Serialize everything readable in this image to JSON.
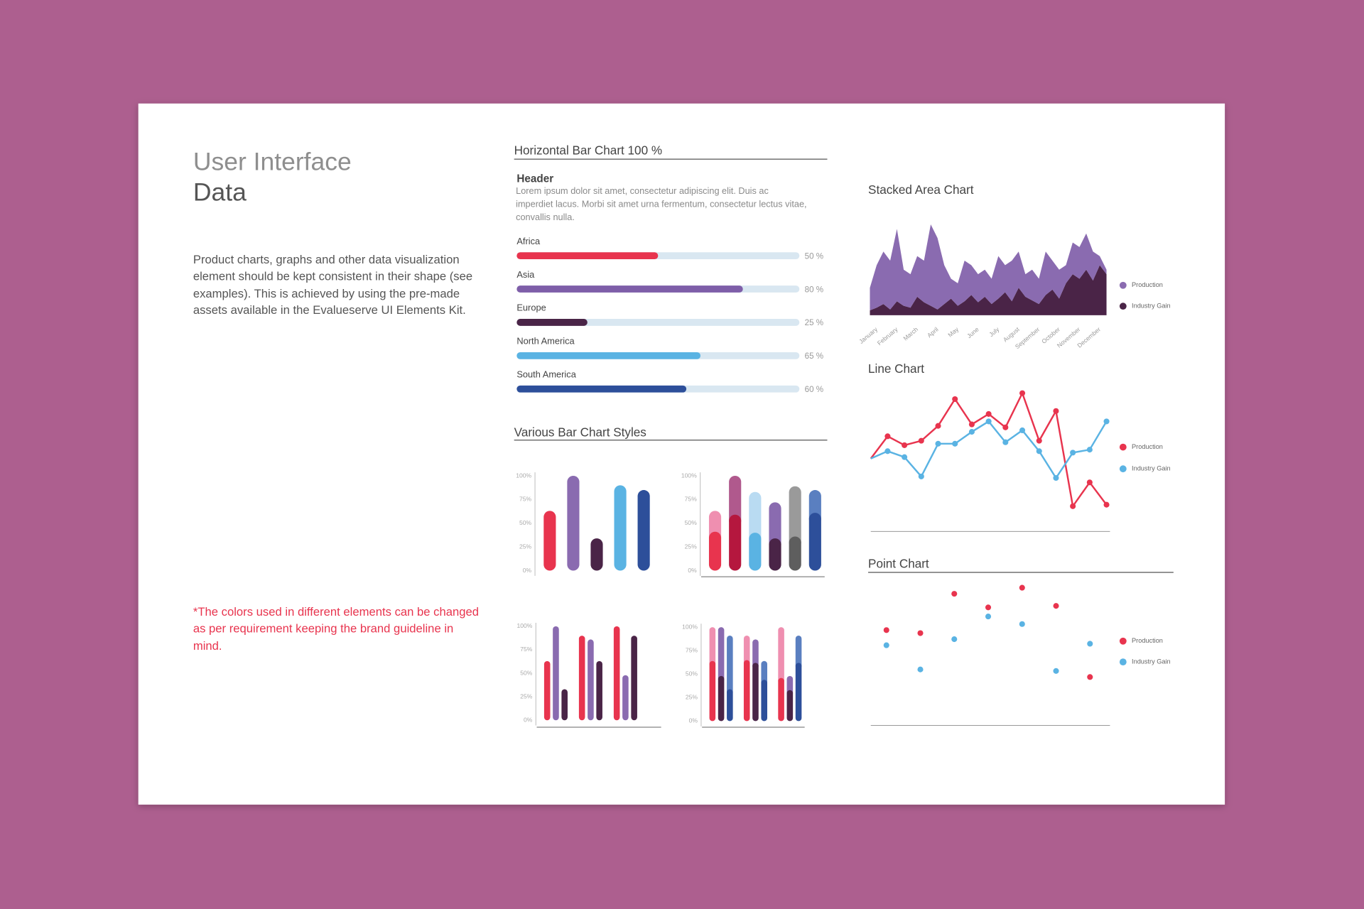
{
  "header": {
    "title": "User Interface",
    "subtitle": "Data"
  },
  "intro": "Product charts, graphs and other data visualization element should be kept consistent in their shape (see examples). This is achieved by using the pre-made assets available in the Evalueserve UI Elements Kit.",
  "note": "*The colors used in different elements can be changed as per requirement keeping the brand guideline in mind.",
  "chart_data": [
    {
      "type": "progress",
      "title": "Horizontal Bar Chart 100 %",
      "header": "Header",
      "description": "Lorem ipsum dolor sit amet, consectetur adipiscing elit. Duis ac imperdiet lacus. Morbi sit amet urna fermentum, consectetur lectus vitae, convallis nulla.",
      "categories": [
        "Africa",
        "Asia",
        "Europe",
        "North America",
        "South America"
      ],
      "values": [
        50,
        80,
        25,
        65,
        60
      ],
      "value_labels": [
        "50 %",
        "80 %",
        "25 %",
        "65 %",
        "60 %"
      ],
      "colors": [
        "#e8344e",
        "#7e5ea8",
        "#4a2447",
        "#5ab3e3",
        "#2d4f9a"
      ],
      "track_color": "#d9e7f1",
      "xlim": [
        0,
        100
      ]
    },
    {
      "type": "bar",
      "title": "Various Bar Chart Styles",
      "categories": [
        null,
        null,
        null,
        null,
        null
      ],
      "values": [
        63,
        100,
        34,
        90,
        85
      ],
      "colors": [
        "#e8344e",
        "#8a6bb0",
        "#4a2447",
        "#5ab3e3",
        "#2d4f9a"
      ],
      "ylim": [
        0,
        100
      ],
      "yticks": [
        {
          "value": 100,
          "label": "100%"
        },
        {
          "value": 75,
          "label": "75%"
        },
        {
          "value": 50,
          "label": "50%"
        },
        {
          "value": 25,
          "label": "25%"
        },
        {
          "value": 0,
          "label": "0%"
        }
      ]
    },
    {
      "type": "stacked_bar",
      "categories": [
        null,
        null,
        null,
        null,
        null,
        null
      ],
      "series": [
        {
          "colors": [
            "#e8344e",
            "#b5173e",
            "#5ab3e3",
            "#4a2447",
            "#5e5e5e",
            "#2d4f9a"
          ],
          "values": [
            41,
            59,
            40,
            34,
            36,
            61
          ]
        },
        {
          "colors": [
            "#ef8fb0",
            "#b0598d",
            "#b9dbf2",
            "#8a6bb0",
            "#9a9a9a",
            "#5a7fc0"
          ],
          "values": [
            22,
            41,
            43,
            38,
            53,
            24
          ]
        }
      ],
      "ylim": [
        0,
        100
      ],
      "yticks": [
        {
          "value": 100,
          "label": "100%"
        },
        {
          "value": 75,
          "label": "75%"
        },
        {
          "value": 50,
          "label": "50%"
        },
        {
          "value": 25,
          "label": "25%"
        },
        {
          "value": 0,
          "label": "0%"
        }
      ]
    },
    {
      "type": "grouped_bar",
      "categories": [
        null,
        null,
        null
      ],
      "series": [
        {
          "color": "#e8344e",
          "values": [
            63,
            90,
            100
          ]
        },
        {
          "color": "#8a6bb0",
          "values": [
            100,
            86,
            48
          ]
        },
        {
          "color": "#4a2447",
          "values": [
            33,
            63,
            90
          ]
        }
      ],
      "ylim": [
        0,
        100
      ],
      "yticks": [
        {
          "value": 100,
          "label": "100%"
        },
        {
          "value": 75,
          "label": "75%"
        },
        {
          "value": 50,
          "label": "50%"
        },
        {
          "value": 25,
          "label": "25%"
        },
        {
          "value": 0,
          "label": "0%"
        }
      ]
    },
    {
      "type": "grouped_stacked_bar",
      "categories": [
        null,
        null,
        null
      ],
      "series": [
        {
          "color": "#e8344e",
          "stack": 0,
          "values": [
            64,
            65,
            46
          ]
        },
        {
          "color": "#ef8fb0",
          "stack": 0,
          "values": [
            36,
            26,
            54
          ]
        },
        {
          "color": "#4a2447",
          "stack": 1,
          "values": [
            48,
            62,
            33
          ]
        },
        {
          "color": "#8a6bb0",
          "stack": 1,
          "values": [
            52,
            25,
            15
          ]
        },
        {
          "color": "#2d4f9a",
          "stack": 2,
          "values": [
            34,
            44,
            62
          ]
        },
        {
          "color": "#5a7fc0",
          "stack": 2,
          "values": [
            57,
            20,
            29
          ]
        }
      ],
      "ylim": [
        0,
        100
      ],
      "yticks": [
        {
          "value": 100,
          "label": "100%"
        },
        {
          "value": 75,
          "label": "75%"
        },
        {
          "value": 50,
          "label": "50%"
        },
        {
          "value": 25,
          "label": "25%"
        },
        {
          "value": 0,
          "label": "0%"
        }
      ]
    },
    {
      "type": "area",
      "title": "Stacked Area Chart",
      "stacked": true,
      "categories": [
        "January",
        null,
        null,
        "February",
        null,
        null,
        "March",
        null,
        null,
        "April",
        null,
        null,
        "May",
        null,
        null,
        "June",
        null,
        null,
        "July",
        null,
        null,
        "August",
        null,
        null,
        "September",
        null,
        null,
        "October",
        null,
        null,
        "November",
        null,
        null,
        "December",
        null,
        null
      ],
      "series": [
        {
          "name": "Production",
          "color": "#8a6bb0",
          "values": [
            25,
            47,
            58,
            54,
            80,
            40,
            37,
            45,
            46,
            90,
            79,
            43,
            22,
            25,
            45,
            33,
            31,
            30,
            28,
            47,
            30,
            45,
            40,
            25,
            34,
            28,
            48,
            32,
            32,
            20,
            35,
            35,
            40,
            32,
            10,
            5
          ]
        },
        {
          "name": "Industry Gain",
          "color": "#4a2447",
          "values": [
            5,
            8,
            12,
            6,
            15,
            10,
            8,
            20,
            14,
            10,
            6,
            12,
            18,
            10,
            15,
            22,
            14,
            20,
            12,
            18,
            25,
            15,
            30,
            20,
            16,
            12,
            22,
            28,
            18,
            35,
            45,
            40,
            50,
            38,
            55,
            45
          ]
        }
      ],
      "ylim": [
        0,
        100
      ]
    },
    {
      "type": "line",
      "title": "Line Chart",
      "categories": [
        null,
        null,
        null,
        null,
        null,
        null,
        null,
        null,
        null,
        null,
        null,
        null,
        null,
        null,
        null
      ],
      "series": [
        {
          "name": "Production",
          "color": "#e8344e",
          "values": [
            49,
            64,
            58,
            61,
            71,
            89,
            72,
            79,
            70,
            93,
            61,
            81,
            17,
            33,
            18
          ]
        },
        {
          "name": "Industry Gain",
          "color": "#5ab3e3",
          "values": [
            49,
            54,
            50,
            37,
            59,
            59,
            67,
            74,
            60,
            68,
            54,
            36,
            53,
            55,
            74
          ]
        }
      ],
      "ylim": [
        0,
        100
      ]
    },
    {
      "type": "point",
      "title": "Point Chart",
      "categories": [
        null,
        null,
        null,
        null,
        null,
        null,
        null
      ],
      "series": [
        {
          "name": "Production",
          "color": "#e8344e",
          "values": [
            63,
            61,
            87,
            78,
            91,
            79,
            32
          ]
        },
        {
          "name": "Industry Gain",
          "color": "#5ab3e3",
          "values": [
            53,
            37,
            57,
            72,
            67,
            36,
            54
          ]
        }
      ],
      "ylim": [
        0,
        100
      ]
    }
  ]
}
